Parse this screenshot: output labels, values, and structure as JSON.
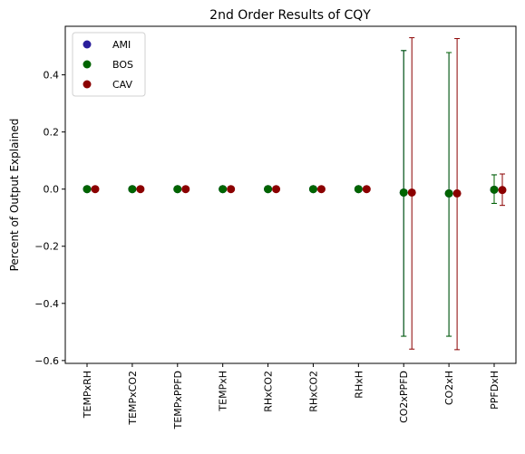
{
  "chart_data": {
    "type": "scatter",
    "title": "2nd Order Results of CQY",
    "xlabel": "",
    "ylabel": "Percent of Output Explained",
    "categories": [
      "TEMPxRH",
      "TEMPxCO2",
      "TEMPxPPFD",
      "TEMPxH",
      "RHxCO2",
      "RHxCO2",
      "RHxH",
      "CO2xPPFD",
      "CO2xH",
      "PPFDxH"
    ],
    "ylim": [
      -0.61,
      0.57
    ],
    "yticks": [
      -0.6,
      -0.4,
      -0.2,
      0.0,
      0.2,
      0.4
    ],
    "ytick_labels": [
      "−0.6",
      "−0.4",
      "−0.2",
      "0.0",
      "0.2",
      "0.4"
    ],
    "grid": false,
    "legend_position": "top-left",
    "series": [
      {
        "name": "AMI",
        "color": "#2a1e9b",
        "values": [
          0,
          0,
          0,
          0,
          0,
          0,
          0,
          -0.012,
          -0.015,
          -0.002
        ],
        "error_low": [
          0,
          0,
          0,
          0,
          0,
          0,
          0,
          -0.515,
          -0.515,
          -0.05
        ],
        "error_high": [
          0,
          0,
          0,
          0,
          0,
          0,
          0,
          0.485,
          0.478,
          0.05
        ]
      },
      {
        "name": "BOS",
        "color": "#006400",
        "values": [
          0,
          0,
          0,
          0,
          0,
          0,
          0,
          -0.012,
          -0.015,
          -0.002
        ],
        "error_low": [
          0,
          0,
          0,
          0,
          0,
          0,
          0,
          -0.515,
          -0.515,
          -0.05
        ],
        "error_high": [
          0,
          0,
          0,
          0,
          0,
          0,
          0,
          0.485,
          0.478,
          0.05
        ]
      },
      {
        "name": "CAV",
        "color": "#8b0000",
        "values": [
          0,
          0,
          0,
          0,
          0,
          0,
          0,
          -0.012,
          -0.015,
          -0.003
        ],
        "error_low": [
          0,
          0,
          0,
          0,
          0,
          0,
          0,
          -0.56,
          -0.562,
          -0.057
        ],
        "error_high": [
          0,
          0,
          0,
          0,
          0,
          0,
          0,
          0.53,
          0.527,
          0.053
        ]
      }
    ]
  }
}
